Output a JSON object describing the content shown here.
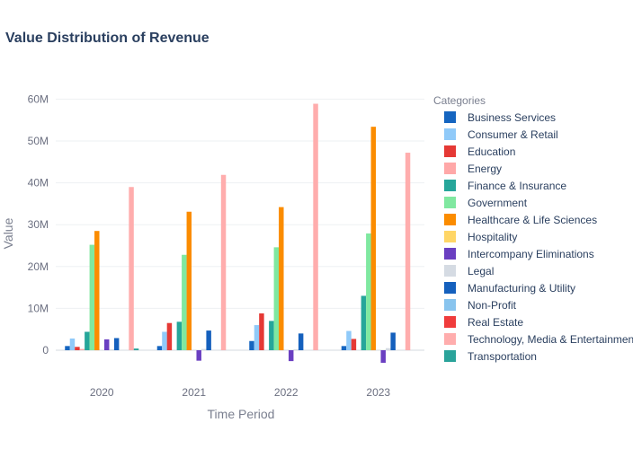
{
  "chart_data": {
    "type": "bar",
    "title": "Value Distribution of Revenue",
    "xlabel": "Time Period",
    "ylabel": "Value",
    "ylim": [
      -3000000,
      62000000
    ],
    "ytick_values": [
      0,
      10000000,
      20000000,
      30000000,
      40000000,
      50000000,
      60000000
    ],
    "ytick_labels": [
      "0",
      "10M",
      "20M",
      "30M",
      "40M",
      "50M",
      "60M"
    ],
    "categories": [
      "2020",
      "2021",
      "2022",
      "2023"
    ],
    "legend_title": "Categories",
    "legend_position": "right",
    "grid": true,
    "series": [
      {
        "name": "Business Services",
        "color": "#1565c0",
        "values": [
          1000000,
          1000000,
          2200000,
          1000000
        ]
      },
      {
        "name": "Consumer & Retail",
        "color": "#90caf9",
        "values": [
          2800000,
          4400000,
          6000000,
          4600000
        ]
      },
      {
        "name": "Education",
        "color": "#e53935",
        "values": [
          800000,
          6500000,
          8800000,
          2700000
        ]
      },
      {
        "name": "Energy",
        "color": "#ffa8a8",
        "values": [
          300000,
          0,
          0,
          0
        ]
      },
      {
        "name": "Finance & Insurance",
        "color": "#26a69a",
        "values": [
          4400000,
          6800000,
          7000000,
          13000000
        ]
      },
      {
        "name": "Government",
        "color": "#80e8a0",
        "values": [
          25200000,
          22800000,
          24600000,
          27900000
        ]
      },
      {
        "name": "Healthcare & Life Sciences",
        "color": "#fb8c00",
        "values": [
          28500000,
          33100000,
          34200000,
          53400000
        ]
      },
      {
        "name": "Hospitality",
        "color": "#ffd666",
        "values": [
          0,
          0,
          0,
          0
        ]
      },
      {
        "name": "Intercompany Eliminations",
        "color": "#6a3fc1",
        "values": [
          2600000,
          -2500000,
          -2600000,
          -3000000
        ]
      },
      {
        "name": "Legal",
        "color": "#d5dbe3",
        "values": [
          200000,
          300000,
          200000,
          500000
        ]
      },
      {
        "name": "Manufacturing & Utility",
        "color": "#1560bd",
        "values": [
          2900000,
          4700000,
          4000000,
          4200000
        ]
      },
      {
        "name": "Non-Profit",
        "color": "#88c4ee",
        "values": [
          0,
          0,
          0,
          0
        ]
      },
      {
        "name": "Real Estate",
        "color": "#f03c3c",
        "values": [
          0,
          0,
          0,
          0
        ]
      },
      {
        "name": "Technology, Media & Entertainment",
        "color": "#ffadad",
        "values": [
          39000000,
          41900000,
          58900000,
          47200000
        ]
      },
      {
        "name": "Transportation",
        "color": "#2aa39a",
        "values": [
          400000,
          0,
          0,
          0
        ]
      }
    ]
  }
}
